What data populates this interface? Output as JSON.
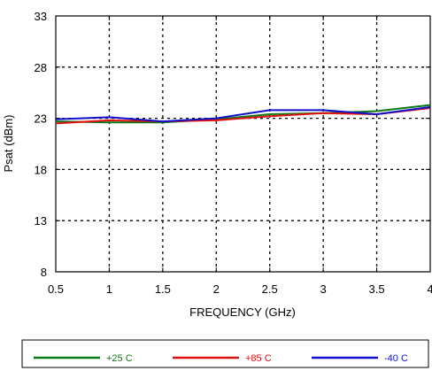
{
  "chart_data": {
    "type": "line",
    "xlabel": "FREQUENCY (GHz)",
    "ylabel": "Psat (dBm)",
    "xlim": [
      0.5,
      4
    ],
    "ylim": [
      8,
      33
    ],
    "x_ticks": [
      "0.5",
      "1",
      "1.5",
      "2",
      "2.5",
      "3",
      "3.5",
      "4"
    ],
    "y_ticks": [
      "8",
      "13",
      "18",
      "23",
      "28",
      "33"
    ],
    "grid": "dotted",
    "legend_position": "bottom",
    "series": [
      {
        "name": "+25 C",
        "color": "#0a7a16",
        "x": [
          0.5,
          1,
          1.5,
          2,
          2.5,
          3,
          3.5,
          4
        ],
        "y": [
          22.7,
          22.6,
          22.6,
          22.9,
          23.4,
          23.5,
          23.7,
          24.3
        ]
      },
      {
        "name": "+85 C",
        "color": "#e01010",
        "x": [
          0.5,
          1,
          1.5,
          2,
          2.5,
          3,
          3.5,
          4
        ],
        "y": [
          22.5,
          22.8,
          22.7,
          22.8,
          23.2,
          23.5,
          23.4,
          24.0
        ]
      },
      {
        "name": "-40 C",
        "color": "#1010cc",
        "x": [
          0.5,
          1,
          1.5,
          2,
          2.5,
          3,
          3.5,
          4
        ],
        "y": [
          22.9,
          23.1,
          22.7,
          23.0,
          23.8,
          23.8,
          23.4,
          24.1
        ]
      }
    ]
  }
}
